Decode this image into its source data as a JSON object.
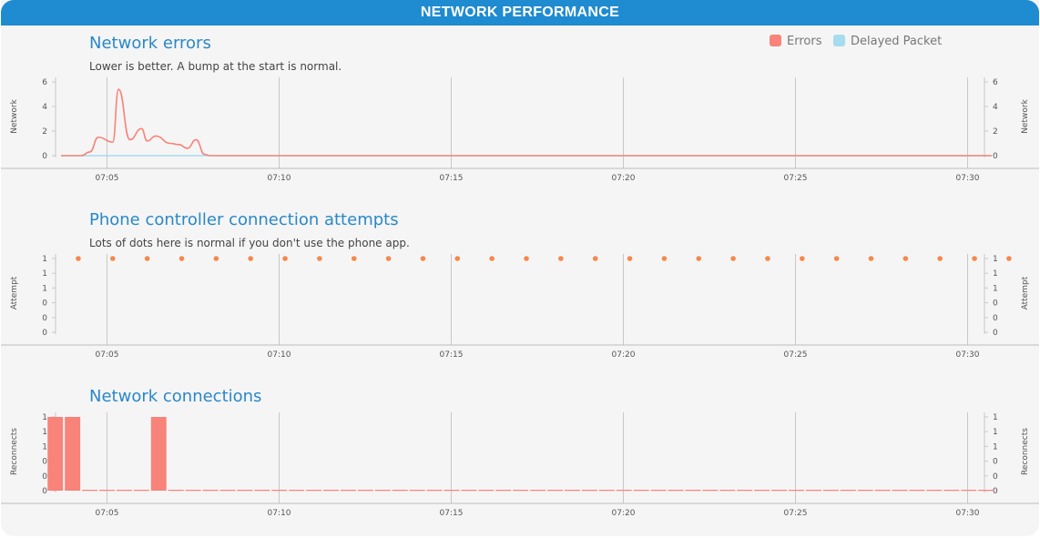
{
  "header": {
    "title": "NETWORK PERFORMANCE"
  },
  "legend": {
    "items": [
      {
        "label": "Errors",
        "color": "#f88379"
      },
      {
        "label": "Delayed Packet",
        "color": "#a6dcef"
      }
    ]
  },
  "chart_data": [
    {
      "type": "line",
      "title": "Network errors",
      "subtitle": "Lower is better. A bump at the start is normal.",
      "ylabel": "Network",
      "ylim": [
        0,
        6
      ],
      "yticks": [
        "0",
        "2",
        "4",
        "6"
      ],
      "x_ticks": [
        "07:05",
        "07:10",
        "07:15",
        "07:20",
        "07:25",
        "07:30"
      ],
      "series": [
        {
          "name": "Errors",
          "color": "#f88379",
          "x": [
            "07:03:40",
            "07:04:15",
            "07:04:30",
            "07:04:45",
            "07:05:10",
            "07:05:20",
            "07:05:40",
            "07:06:00",
            "07:06:10",
            "07:06:25",
            "07:06:50",
            "07:07:05",
            "07:07:20",
            "07:07:35",
            "07:07:50",
            "07:08:00",
            "07:30:40"
          ],
          "values": [
            0,
            0,
            0.3,
            1.5,
            1.1,
            5.4,
            1.3,
            2.2,
            1.2,
            1.6,
            1.0,
            0.9,
            0.6,
            1.3,
            0.1,
            0,
            0
          ]
        },
        {
          "name": "Delayed Packet",
          "color": "#a6dcef",
          "x": [
            "07:03:40",
            "07:30:40"
          ],
          "values": [
            0,
            0
          ]
        }
      ]
    },
    {
      "type": "scatter",
      "title": "Phone controller connection attempts",
      "subtitle": "Lots of dots here is normal if you don't use the phone app.",
      "ylabel": "Attempt",
      "ylim": [
        0,
        1
      ],
      "yticks": [
        "0",
        "0",
        "0",
        "1",
        "1",
        "1"
      ],
      "x_ticks": [
        "07:05",
        "07:10",
        "07:15",
        "07:20",
        "07:25",
        "07:30"
      ],
      "series": [
        {
          "color": "#f5894a",
          "x": [
            "07:04:10",
            "07:05:10",
            "07:06:10",
            "07:07:10",
            "07:08:10",
            "07:09:10",
            "07:10:10",
            "07:11:10",
            "07:12:10",
            "07:13:10",
            "07:14:10",
            "07:15:10",
            "07:16:10",
            "07:17:10",
            "07:18:10",
            "07:19:10",
            "07:20:10",
            "07:21:10",
            "07:22:10",
            "07:23:10",
            "07:24:10",
            "07:25:10",
            "07:26:10",
            "07:27:10",
            "07:28:10",
            "07:29:10",
            "07:30:10",
            "07:31:10"
          ],
          "values": [
            1,
            1,
            1,
            1,
            1,
            1,
            1,
            1,
            1,
            1,
            1,
            1,
            1,
            1,
            1,
            1,
            1,
            1,
            1,
            1,
            1,
            1,
            1,
            1,
            1,
            1,
            1,
            1
          ]
        }
      ]
    },
    {
      "type": "bar",
      "title": "Network connections",
      "ylabel": "Reconnects",
      "ylim": [
        0,
        1
      ],
      "yticks": [
        "0",
        "0",
        "0",
        "1",
        "1",
        "1"
      ],
      "x_ticks": [
        "07:05",
        "07:10",
        "07:15",
        "07:20",
        "07:25",
        "07:30"
      ],
      "series": [
        {
          "color": "#f88379",
          "x": [
            "07:03:30",
            "07:04:00",
            "07:04:30",
            "07:05:00",
            "07:05:30",
            "07:06:00",
            "07:06:30",
            "07:07:00",
            "07:07:30",
            "07:08:00",
            "07:08:30",
            "07:09:00",
            "07:09:30",
            "07:10:00",
            "07:10:30",
            "07:11:00",
            "07:11:30",
            "07:12:00",
            "07:12:30",
            "07:13:00",
            "07:13:30",
            "07:14:00",
            "07:14:30",
            "07:15:00",
            "07:15:30",
            "07:16:00",
            "07:16:30",
            "07:17:00",
            "07:17:30",
            "07:18:00",
            "07:18:30",
            "07:19:00",
            "07:19:30",
            "07:20:00",
            "07:20:30",
            "07:21:00",
            "07:21:30",
            "07:22:00",
            "07:22:30",
            "07:23:00",
            "07:23:30",
            "07:24:00",
            "07:24:30",
            "07:25:00",
            "07:25:30",
            "07:26:00",
            "07:26:30",
            "07:27:00",
            "07:27:30",
            "07:28:00",
            "07:28:30",
            "07:29:00",
            "07:29:30",
            "07:30:00",
            "07:30:30"
          ],
          "values": [
            1,
            1,
            0,
            0,
            0,
            0,
            1,
            0,
            0,
            0,
            0,
            0,
            0,
            0,
            0,
            0,
            0,
            0,
            0,
            0,
            0,
            0,
            0,
            0,
            0,
            0,
            0,
            0,
            0,
            0,
            0,
            0,
            0,
            0,
            0,
            0,
            0,
            0,
            0,
            0,
            0,
            0,
            0,
            0,
            0,
            0,
            0,
            0,
            0,
            0,
            0,
            0,
            0,
            0,
            0
          ]
        }
      ]
    }
  ]
}
